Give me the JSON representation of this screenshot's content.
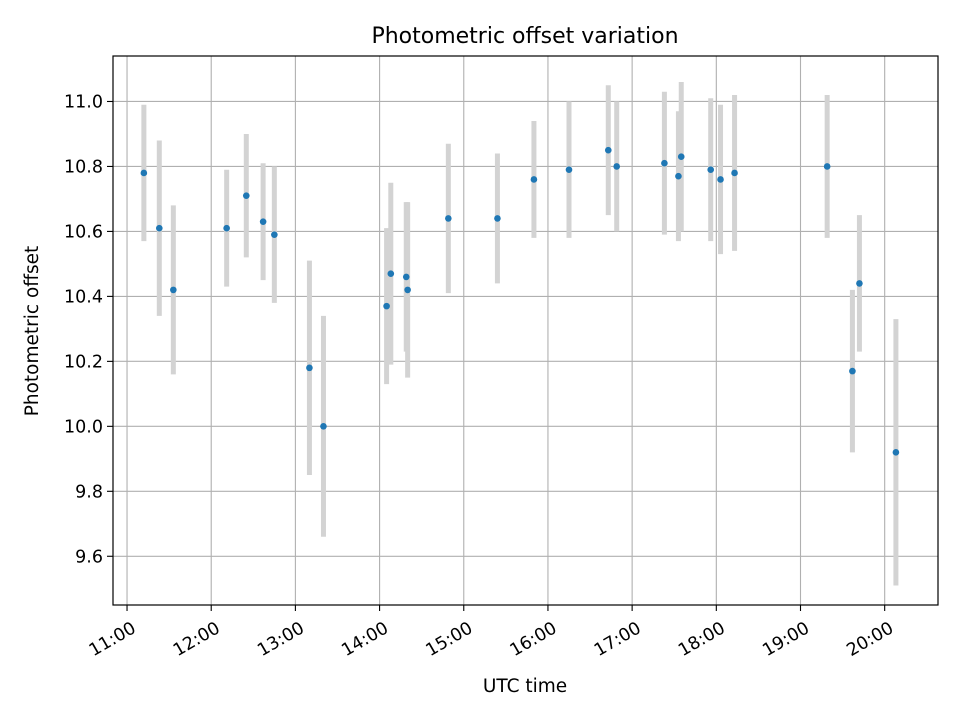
{
  "chart_data": {
    "type": "scatter",
    "title": "Photometric offset variation",
    "xlabel": "UTC time",
    "ylabel": "Photometric offset",
    "x_ticks": [
      "11:00",
      "12:00",
      "13:00",
      "14:00",
      "15:00",
      "16:00",
      "17:00",
      "18:00",
      "19:00",
      "20:00"
    ],
    "y_ticks": [
      "9.6",
      "9.8",
      "10.0",
      "10.2",
      "10.4",
      "10.6",
      "10.8",
      "11.0"
    ],
    "xlim": [
      "10:50",
      "20:38"
    ],
    "ylim": [
      9.45,
      11.14
    ],
    "grid": true,
    "series": [
      {
        "marker_color": "#1f77b4",
        "errorbar_color": "#d3d3d3",
        "points": [
          {
            "t": "11:12",
            "y": 10.78,
            "err": 0.21
          },
          {
            "t": "11:23",
            "y": 10.61,
            "err": 0.27
          },
          {
            "t": "11:33",
            "y": 10.42,
            "err": 0.26
          },
          {
            "t": "12:11",
            "y": 10.61,
            "err": 0.18
          },
          {
            "t": "12:25",
            "y": 10.71,
            "err": 0.19
          },
          {
            "t": "12:37",
            "y": 10.63,
            "err": 0.18
          },
          {
            "t": "12:45",
            "y": 10.59,
            "err": 0.21
          },
          {
            "t": "13:10",
            "y": 10.18,
            "err": 0.33
          },
          {
            "t": "13:20",
            "y": 10.0,
            "err": 0.34
          },
          {
            "t": "14:05",
            "y": 10.37,
            "err": 0.24
          },
          {
            "t": "14:08",
            "y": 10.47,
            "err": 0.28
          },
          {
            "t": "14:19",
            "y": 10.46,
            "err": 0.23
          },
          {
            "t": "14:20",
            "y": 10.42,
            "err": 0.27
          },
          {
            "t": "14:49",
            "y": 10.64,
            "err": 0.23
          },
          {
            "t": "15:24",
            "y": 10.64,
            "err": 0.2
          },
          {
            "t": "15:50",
            "y": 10.76,
            "err": 0.18
          },
          {
            "t": "16:15",
            "y": 10.79,
            "err": 0.21
          },
          {
            "t": "16:43",
            "y": 10.85,
            "err": 0.2
          },
          {
            "t": "16:49",
            "y": 10.8,
            "err": 0.2
          },
          {
            "t": "17:23",
            "y": 10.81,
            "err": 0.22
          },
          {
            "t": "17:33",
            "y": 10.77,
            "err": 0.2
          },
          {
            "t": "17:35",
            "y": 10.83,
            "err": 0.23
          },
          {
            "t": "17:56",
            "y": 10.79,
            "err": 0.22
          },
          {
            "t": "18:03",
            "y": 10.76,
            "err": 0.23
          },
          {
            "t": "18:13",
            "y": 10.78,
            "err": 0.24
          },
          {
            "t": "19:19",
            "y": 10.8,
            "err": 0.22
          },
          {
            "t": "19:37",
            "y": 10.17,
            "err": 0.25
          },
          {
            "t": "19:42",
            "y": 10.44,
            "err": 0.21
          },
          {
            "t": "20:08",
            "y": 9.92,
            "err": 0.41
          }
        ]
      }
    ]
  }
}
